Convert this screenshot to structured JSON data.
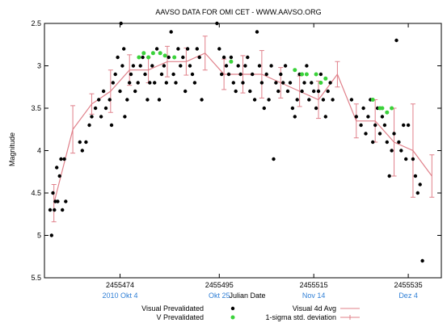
{
  "chart_data": {
    "type": "scatter",
    "title": "AAVSO DATA FOR OMI CET - WWW.AAVSO.ORG",
    "xlabel": "Julian Date",
    "ylabel": "Magnitude",
    "xlim": [
      2455458,
      2455542
    ],
    "ylim": [
      2.5,
      5.5
    ],
    "y_inverted": true,
    "grid": false,
    "legend_position": "bottom",
    "x_ticks": [
      {
        "value": 2455474,
        "label": "2455474",
        "date": "2010 Okt 4"
      },
      {
        "value": 2455495,
        "label": "2455495",
        "date": "Okt 25"
      },
      {
        "value": 2455515,
        "label": "2455515",
        "date": "Nov 14"
      },
      {
        "value": 2455535,
        "label": "2455535",
        "date": "Dez 4"
      }
    ],
    "y_ticks": [
      {
        "value": 2.5,
        "label": "2.5"
      },
      {
        "value": 3,
        "label": "3"
      },
      {
        "value": 3.5,
        "label": "3.5"
      },
      {
        "value": 4,
        "label": "4"
      },
      {
        "value": 4.5,
        "label": "4.5"
      },
      {
        "value": 5,
        "label": "5"
      },
      {
        "value": 5.5,
        "label": "5.5"
      }
    ],
    "series": [
      {
        "name": "Visual Prevalidated",
        "kind": "points",
        "color": "#000000",
        "points": [
          [
            2455459.2,
            4.7
          ],
          [
            2455459.5,
            5.0
          ],
          [
            2455459.8,
            4.5
          ],
          [
            2455460.1,
            4.7
          ],
          [
            2455460.3,
            4.6
          ],
          [
            2455460.6,
            4.2
          ],
          [
            2455460.8,
            4.6
          ],
          [
            2455461.2,
            4.3
          ],
          [
            2455461.5,
            4.1
          ],
          [
            2455461.8,
            4.7
          ],
          [
            2455462.2,
            4.1
          ],
          [
            2455462.5,
            4.6
          ],
          [
            2455465.5,
            3.9
          ],
          [
            2455466,
            4.0
          ],
          [
            2455466.8,
            3.9
          ],
          [
            2455467.5,
            3.7
          ],
          [
            2455468,
            3.6
          ],
          [
            2455468.8,
            3.5
          ],
          [
            2455469.5,
            3.4
          ],
          [
            2455470,
            3.6
          ],
          [
            2455470.5,
            3.3
          ],
          [
            2455471,
            3.5
          ],
          [
            2455471.8,
            3.4
          ],
          [
            2455472.2,
            3.7
          ],
          [
            2455472.5,
            3.2
          ],
          [
            2455473,
            3.1
          ],
          [
            2455473.5,
            2.9
          ],
          [
            2455474,
            3.3
          ],
          [
            2455474.5,
            3.0
          ],
          [
            2455475,
            3.6
          ],
          [
            2455475.5,
            3.4
          ],
          [
            2455476,
            3.2
          ],
          [
            2455474.2,
            2.5
          ],
          [
            2455474.8,
            2.8
          ],
          [
            2455476.3,
            3.1
          ],
          [
            2455476.8,
            3.0
          ],
          [
            2455477.2,
            3.3
          ],
          [
            2455477.8,
            3.2
          ],
          [
            2455478.3,
            3.0
          ],
          [
            2455478.8,
            2.9
          ],
          [
            2455479.3,
            3.1
          ],
          [
            2455479.8,
            3.4
          ],
          [
            2455480.3,
            3.2
          ],
          [
            2455480.8,
            3.0
          ],
          [
            2455481.3,
            3.2
          ],
          [
            2455481.8,
            2.8
          ],
          [
            2455482.3,
            3.4
          ],
          [
            2455482.8,
            3.1
          ],
          [
            2455483.3,
            3.0
          ],
          [
            2455483.8,
            3.2
          ],
          [
            2455484.3,
            2.9
          ],
          [
            2455484.8,
            2.6
          ],
          [
            2455485.3,
            3.1
          ],
          [
            2455485.8,
            3.2
          ],
          [
            2455486.3,
            2.8
          ],
          [
            2455486.8,
            3.0
          ],
          [
            2455487.3,
            2.9
          ],
          [
            2455487.8,
            3.3
          ],
          [
            2455488.3,
            2.8
          ],
          [
            2455488.8,
            3.0
          ],
          [
            2455489.3,
            3.1
          ],
          [
            2455489.8,
            3.2
          ],
          [
            2455490.3,
            2.8
          ],
          [
            2455490.8,
            2.9
          ],
          [
            2455491.3,
            3.4
          ],
          [
            2455494.5,
            2.5
          ],
          [
            2455495,
            2.8
          ],
          [
            2455495.5,
            3.1
          ],
          [
            2455496,
            2.9
          ],
          [
            2455496.5,
            3.0
          ],
          [
            2455497,
            3.1
          ],
          [
            2455497.5,
            2.9
          ],
          [
            2455498,
            3.2
          ],
          [
            2455498.5,
            3.3
          ],
          [
            2455499,
            3.0
          ],
          [
            2455499.5,
            3.1
          ],
          [
            2455500,
            3.2
          ],
          [
            2455500.5,
            3.0
          ],
          [
            2455501,
            2.9
          ],
          [
            2455501.5,
            3.3
          ],
          [
            2455502,
            3.1
          ],
          [
            2455502.5,
            3.4
          ],
          [
            2455503,
            2.6
          ],
          [
            2455503.5,
            3.0
          ],
          [
            2455504,
            3.2
          ],
          [
            2455504.5,
            3.5
          ],
          [
            2455505,
            3.1
          ],
          [
            2455505.5,
            3.4
          ],
          [
            2455506,
            3.0
          ],
          [
            2455506.5,
            4.1
          ],
          [
            2455507,
            3.2
          ],
          [
            2455507.5,
            3.3
          ],
          [
            2455508,
            3.1
          ],
          [
            2455508.5,
            3.2
          ],
          [
            2455509,
            3.0
          ],
          [
            2455509.5,
            3.3
          ],
          [
            2455510,
            3.2
          ],
          [
            2455510.5,
            3.5
          ],
          [
            2455511,
            3.6
          ],
          [
            2455511.5,
            3.4
          ],
          [
            2455512,
            3.1
          ],
          [
            2455512.5,
            3.3
          ],
          [
            2455513,
            3.2
          ],
          [
            2455513.5,
            3.0
          ],
          [
            2455514,
            3.4
          ],
          [
            2455514.5,
            3.2
          ],
          [
            2455515,
            3.3
          ],
          [
            2455515.5,
            3.5
          ],
          [
            2455516,
            3.3
          ],
          [
            2455516.5,
            3.1
          ],
          [
            2455517,
            3.4
          ],
          [
            2455517.5,
            3.6
          ],
          [
            2455518,
            3.3
          ],
          [
            2455518.5,
            3.2
          ],
          [
            2455519,
            3.4
          ],
          [
            2455523,
            3.4
          ],
          [
            2455524,
            3.6
          ],
          [
            2455525,
            3.7
          ],
          [
            2455525.5,
            3.5
          ],
          [
            2455526,
            3.8
          ],
          [
            2455526.5,
            3.6
          ],
          [
            2455527,
            3.4
          ],
          [
            2455527.5,
            3.9
          ],
          [
            2455528,
            3.7
          ],
          [
            2455528.5,
            3.5
          ],
          [
            2455529,
            3.8
          ],
          [
            2455529.5,
            3.6
          ],
          [
            2455530,
            3.7
          ],
          [
            2455530.5,
            3.9
          ],
          [
            2455531,
            4.3
          ],
          [
            2455531.5,
            4.0
          ],
          [
            2455532,
            3.8
          ],
          [
            2455532.5,
            2.7
          ],
          [
            2455533,
            3.9
          ],
          [
            2455533.5,
            4.0
          ],
          [
            2455534,
            3.7
          ],
          [
            2455534.5,
            4.1
          ],
          [
            2455535,
            3.7
          ],
          [
            2455536,
            4.1
          ],
          [
            2455536.5,
            4.3
          ],
          [
            2455537,
            4.5
          ],
          [
            2455537.5,
            4.4
          ],
          [
            2455538,
            5.3
          ]
        ]
      },
      {
        "name": "V Prevalidated",
        "kind": "points",
        "color": "#3ad23a",
        "points": [
          [
            2455478,
            2.9
          ],
          [
            2455479,
            2.85
          ],
          [
            2455480,
            2.9
          ],
          [
            2455481,
            2.85
          ],
          [
            2455482.5,
            2.85
          ],
          [
            2455483.5,
            2.88
          ],
          [
            2455485.5,
            2.9
          ],
          [
            2455497.5,
            2.95
          ],
          [
            2455511,
            3.05
          ],
          [
            2455512.5,
            3.1
          ],
          [
            2455513.5,
            3.1
          ],
          [
            2455515.5,
            3.1
          ],
          [
            2455516.5,
            3.2
          ],
          [
            2455517.5,
            3.15
          ],
          [
            2455527.5,
            3.4
          ],
          [
            2455529,
            3.5
          ],
          [
            2455529.5,
            3.5
          ],
          [
            2455530.5,
            3.55
          ],
          [
            2455531.5,
            3.5
          ]
        ]
      },
      {
        "name": "Visual 4d Avg",
        "kind": "line",
        "color": "#e0808a",
        "points": [
          [
            2455460,
            4.62
          ],
          [
            2455464,
            3.75
          ],
          [
            2455468,
            3.45
          ],
          [
            2455472,
            3.3
          ],
          [
            2455476,
            3.05
          ],
          [
            2455480,
            3.05
          ],
          [
            2455484,
            2.95
          ],
          [
            2455488,
            2.95
          ],
          [
            2455492,
            2.85
          ],
          [
            2455496,
            3.1
          ],
          [
            2455500,
            3.1
          ],
          [
            2455504,
            3.1
          ],
          [
            2455508,
            3.2
          ],
          [
            2455512,
            3.3
          ],
          [
            2455516,
            3.4
          ],
          [
            2455520,
            3.1
          ],
          [
            2455524,
            3.65
          ],
          [
            2455528,
            3.65
          ],
          [
            2455532,
            3.9
          ],
          [
            2455536,
            4.0
          ],
          [
            2455540,
            4.3
          ]
        ]
      },
      {
        "name": "1-sigma std. deviation",
        "kind": "errorbars",
        "color": "#e0808a",
        "bars": [
          [
            2455460,
            4.62,
            0.22
          ],
          [
            2455464,
            3.75,
            0.28
          ],
          [
            2455468,
            3.45,
            0.12
          ],
          [
            2455472,
            3.3,
            0.25
          ],
          [
            2455476,
            3.05,
            0.18
          ],
          [
            2455480,
            3.05,
            0.15
          ],
          [
            2455484,
            2.95,
            0.18
          ],
          [
            2455488,
            2.95,
            0.16
          ],
          [
            2455492,
            2.85,
            0.2
          ],
          [
            2455496,
            3.1,
            0.18
          ],
          [
            2455500,
            3.1,
            0.22
          ],
          [
            2455504,
            3.1,
            0.28
          ],
          [
            2455508,
            3.2,
            0.18
          ],
          [
            2455512,
            3.3,
            0.18
          ],
          [
            2455516,
            3.4,
            0.22
          ],
          [
            2455520,
            3.1,
            0.15
          ],
          [
            2455524,
            3.65,
            0.2
          ],
          [
            2455528,
            3.65,
            0.25
          ],
          [
            2455532,
            3.9,
            0.4
          ],
          [
            2455536,
            4.0,
            0.55
          ],
          [
            2455540,
            4.3,
            0.25
          ]
        ]
      }
    ]
  },
  "legend": {
    "visual_prevalidated": "Visual Prevalidated",
    "v_prevalidated": "V Prevalidated",
    "visual_avg": "Visual 4d Avg",
    "sigma": "1-sigma std. deviation"
  }
}
